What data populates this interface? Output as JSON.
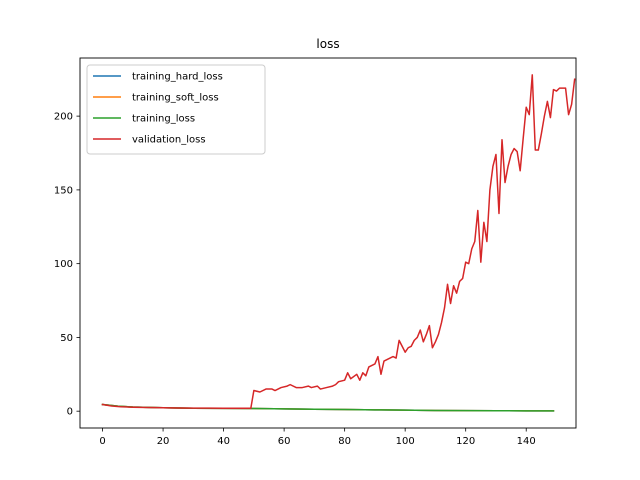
{
  "chart_data": {
    "type": "line",
    "title": "loss",
    "xlabel": "",
    "ylabel": "",
    "xlim": [
      -7.45,
      156.45
    ],
    "ylim": [
      -11.4,
      239.4
    ],
    "xticks": [
      0,
      20,
      40,
      60,
      80,
      100,
      120,
      140
    ],
    "yticks": [
      0,
      50,
      100,
      150,
      200
    ],
    "grid": false,
    "legend_position": "upper-left",
    "series": [
      {
        "name": "training_hard_loss",
        "color": "#1f77b4",
        "points": [
          [
            0,
            4.5
          ],
          [
            5,
            3.4
          ],
          [
            10,
            2.8
          ],
          [
            20,
            2.3
          ],
          [
            30,
            2.0
          ],
          [
            40,
            1.9
          ],
          [
            50,
            1.8
          ],
          [
            60,
            1.6
          ],
          [
            70,
            1.3
          ],
          [
            80,
            1.1
          ],
          [
            90,
            0.9
          ],
          [
            100,
            0.7
          ],
          [
            110,
            0.5
          ],
          [
            120,
            0.4
          ],
          [
            130,
            0.3
          ],
          [
            140,
            0.2
          ],
          [
            149,
            0.2
          ]
        ]
      },
      {
        "name": "training_soft_loss",
        "color": "#ff7f0e",
        "points": [
          [
            0,
            4.5
          ],
          [
            5,
            3.4
          ],
          [
            10,
            2.8
          ],
          [
            20,
            2.3
          ],
          [
            30,
            2.0
          ],
          [
            40,
            1.9
          ],
          [
            50,
            1.8
          ],
          [
            60,
            1.6
          ],
          [
            70,
            1.3
          ],
          [
            80,
            1.1
          ],
          [
            90,
            0.9
          ],
          [
            100,
            0.7
          ],
          [
            110,
            0.5
          ],
          [
            120,
            0.4
          ],
          [
            130,
            0.3
          ],
          [
            140,
            0.2
          ],
          [
            149,
            0.2
          ]
        ]
      },
      {
        "name": "training_loss",
        "color": "#2ca02c",
        "points": [
          [
            0,
            4.5
          ],
          [
            5,
            3.4
          ],
          [
            10,
            2.8
          ],
          [
            20,
            2.3
          ],
          [
            30,
            2.0
          ],
          [
            40,
            1.9
          ],
          [
            50,
            1.8
          ],
          [
            60,
            1.6
          ],
          [
            70,
            1.3
          ],
          [
            80,
            1.1
          ],
          [
            90,
            0.9
          ],
          [
            100,
            0.7
          ],
          [
            110,
            0.5
          ],
          [
            120,
            0.4
          ],
          [
            130,
            0.3
          ],
          [
            140,
            0.2
          ],
          [
            149,
            0.2
          ]
        ]
      },
      {
        "name": "validation_loss",
        "color": "#d62728",
        "points": [
          [
            0,
            4.5
          ],
          [
            3,
            3.5
          ],
          [
            6,
            3.0
          ],
          [
            10,
            2.7
          ],
          [
            15,
            2.5
          ],
          [
            20,
            2.3
          ],
          [
            25,
            2.2
          ],
          [
            30,
            2.1
          ],
          [
            35,
            2.1
          ],
          [
            40,
            2.0
          ],
          [
            45,
            2.0
          ],
          [
            49,
            2.0
          ],
          [
            50,
            14.0
          ],
          [
            52,
            13.0
          ],
          [
            54,
            15.0
          ],
          [
            56,
            15.0
          ],
          [
            57,
            14.0
          ],
          [
            59,
            16.0
          ],
          [
            61,
            17.0
          ],
          [
            62,
            18.0
          ],
          [
            64,
            16.0
          ],
          [
            66,
            16.0
          ],
          [
            68,
            17.0
          ],
          [
            69,
            16.0
          ],
          [
            71,
            17.0
          ],
          [
            72,
            15.0
          ],
          [
            74,
            16.0
          ],
          [
            76,
            17.0
          ],
          [
            77,
            18.0
          ],
          [
            78,
            20.0
          ],
          [
            80,
            21.0
          ],
          [
            81,
            26.0
          ],
          [
            82,
            22.0
          ],
          [
            84,
            25.0
          ],
          [
            85,
            21.0
          ],
          [
            86,
            26.0
          ],
          [
            87,
            24.0
          ],
          [
            88,
            30.0
          ],
          [
            90,
            32.0
          ],
          [
            91,
            37.0
          ],
          [
            92,
            25.0
          ],
          [
            93,
            34.0
          ],
          [
            95,
            36.0
          ],
          [
            96,
            37.0
          ],
          [
            97,
            36.0
          ],
          [
            98,
            48.0
          ],
          [
            99,
            44.0
          ],
          [
            100,
            40.0
          ],
          [
            101,
            43.0
          ],
          [
            102,
            44.0
          ],
          [
            103,
            48.0
          ],
          [
            104,
            50.0
          ],
          [
            105,
            55.0
          ],
          [
            106,
            47.0
          ],
          [
            107,
            52.0
          ],
          [
            108,
            58.0
          ],
          [
            109,
            43.0
          ],
          [
            110,
            47.0
          ],
          [
            111,
            52.0
          ],
          [
            112,
            60.0
          ],
          [
            113,
            70.0
          ],
          [
            114,
            86.0
          ],
          [
            115,
            73.0
          ],
          [
            116,
            85.0
          ],
          [
            117,
            80.0
          ],
          [
            118,
            88.0
          ],
          [
            119,
            90.0
          ],
          [
            120,
            101.0
          ],
          [
            121,
            100.0
          ],
          [
            122,
            110.0
          ],
          [
            123,
            115.0
          ],
          [
            124,
            136.0
          ],
          [
            125,
            101.0
          ],
          [
            126,
            128.0
          ],
          [
            127,
            115.0
          ],
          [
            128,
            150.0
          ],
          [
            129,
            166.0
          ],
          [
            130,
            174.0
          ],
          [
            131,
            134.0
          ],
          [
            132,
            184.0
          ],
          [
            133,
            155.0
          ],
          [
            134,
            166.0
          ],
          [
            135,
            174.0
          ],
          [
            136,
            178.0
          ],
          [
            137,
            176.0
          ],
          [
            138,
            163.0
          ],
          [
            139,
            185.0
          ],
          [
            140,
            206.0
          ],
          [
            141,
            201.0
          ],
          [
            142,
            228.0
          ],
          [
            143,
            177.0
          ],
          [
            144,
            177.0
          ],
          [
            145,
            188.0
          ],
          [
            146,
            200.0
          ],
          [
            147,
            210.0
          ],
          [
            148,
            199.0
          ],
          [
            149,
            218.0
          ],
          [
            150,
            217.0
          ],
          [
            151,
            219.0
          ],
          [
            152,
            219.0
          ],
          [
            153,
            219.0
          ],
          [
            154,
            201.0
          ],
          [
            155,
            208.0
          ],
          [
            156,
            225.0
          ]
        ]
      }
    ]
  }
}
